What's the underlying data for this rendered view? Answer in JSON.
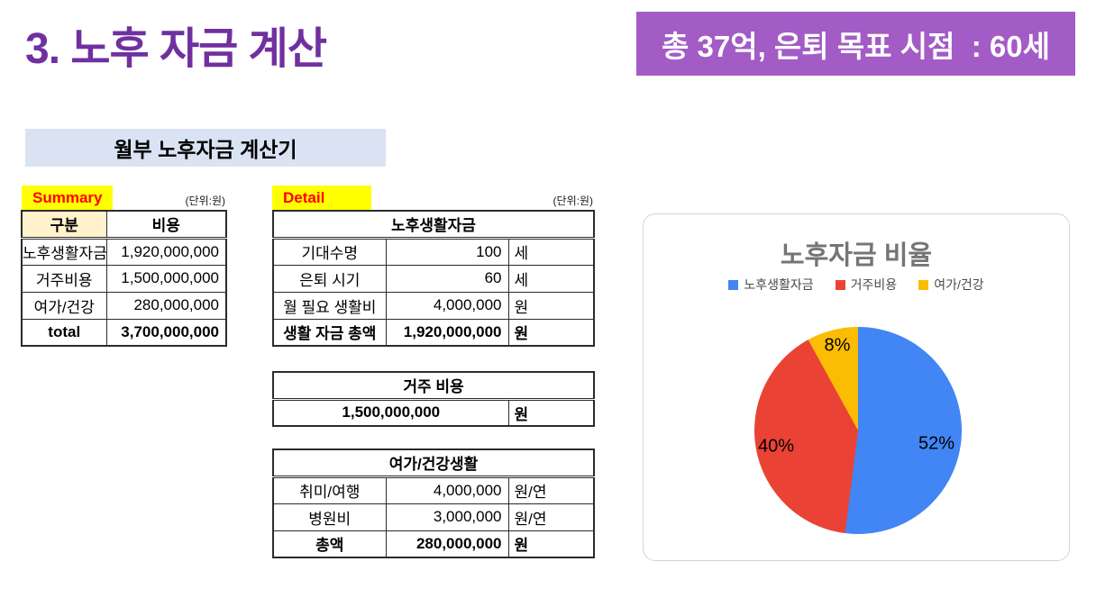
{
  "slide": {
    "title": "3. 노후 자금 계산",
    "badge": "총 37억, 은퇴 목표 시점  : 60세",
    "calculator_title": "월부 노후자금 계산기"
  },
  "colors": {
    "title_purple": "#7030A0",
    "badge_bg": "#A35BC6",
    "tag_bg": "#FFFF00",
    "tag_text": "#FF0000",
    "calc_header_bg": "#DAE3F3",
    "kubun_cell_bg": "#FFF2CC"
  },
  "summary": {
    "label": "Summary",
    "unit_note": "(단위:원)",
    "headers": [
      "구분",
      "비용"
    ],
    "rows": [
      {
        "name": "노후생활자금",
        "value": "1,920,000,000"
      },
      {
        "name": "거주비용",
        "value": "1,500,000,000"
      },
      {
        "name": "여가/건강",
        "value": "280,000,000"
      },
      {
        "name": "total",
        "value": "3,700,000,000"
      }
    ]
  },
  "detail": {
    "label": "Detail",
    "unit_note": "(단위:원)",
    "tables": [
      {
        "title": "노후생활자금",
        "rows": [
          [
            "기대수명",
            "100",
            "세"
          ],
          [
            "은퇴 시기",
            "60",
            "세"
          ],
          [
            "월 필요 생활비",
            "4,000,000",
            "원"
          ],
          [
            "생활 자금 총액",
            "1,920,000,000",
            "원"
          ]
        ]
      },
      {
        "title": "거주 비용",
        "rows": [
          [
            "1,500,000,000",
            "원"
          ]
        ]
      },
      {
        "title": "여가/건강생활",
        "rows": [
          [
            "취미/여행",
            "4,000,000",
            "원/연"
          ],
          [
            "병원비",
            "3,000,000",
            "원/연"
          ],
          [
            "총액",
            "280,000,000",
            "원"
          ]
        ]
      }
    ]
  },
  "chart_data": {
    "type": "pie",
    "title": "노후자금 비율",
    "legend": [
      "노후생활자금",
      "거주비용",
      "여가/건강"
    ],
    "categories": [
      "노후생활자금",
      "거주비용",
      "여가/건강"
    ],
    "values": [
      52,
      40,
      8
    ],
    "labels": [
      "52%",
      "40%",
      "8%"
    ],
    "colors": [
      "#4285F4",
      "#EA4335",
      "#FBBC04"
    ],
    "legend_position": "top",
    "start_angle_deg": 0,
    "direction": "clockwise"
  }
}
